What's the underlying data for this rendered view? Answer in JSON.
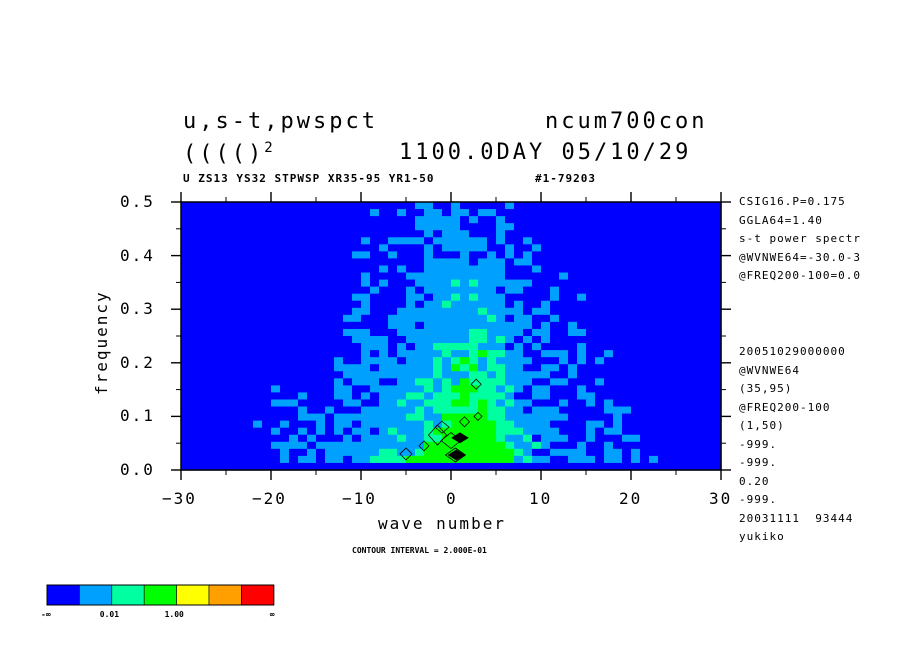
{
  "header": {
    "line1_left": "u,s-t,pwspct",
    "line1_right": "ncum700con",
    "line2_left": "(((()",
    "line2_sup": "2",
    "line2_right": "1100.0DAY 05/10/29",
    "info_left": "U ZS13 YS32 STPWSP XR35-95 YR1-50",
    "info_right": "#1-79203"
  },
  "side_top": [
    "CSIG16.P=0.175",
    "GGLA64=1.40",
    "s-t power spectr",
    "@WVNWE64=-30.0-3",
    "@FREQ200-100=0.0"
  ],
  "side_bottom": [
    "20051029000000",
    "@WVNWE64",
    "(35,95)",
    "@FREQ200-100",
    "(1,50)",
    "-999.",
    "-999.",
    "0.20",
    "-999.",
    "20031111  93444",
    "yukiko"
  ],
  "contour_interval": "CONTOUR INTERVAL = 2.000E-01",
  "colorbar": {
    "colors": [
      "#0000ff",
      "#00a0ff",
      "#00ffa0",
      "#00ff00",
      "#ffff00",
      "#ffa000",
      "#ff0000"
    ],
    "labels": [
      "-∞",
      "0.01",
      "1.00",
      "∞"
    ]
  },
  "chart_data": {
    "type": "heatmap",
    "title": "",
    "xlabel": "wave number",
    "ylabel": "frequency",
    "xlim": [
      -30,
      30
    ],
    "ylim": [
      0,
      0.5
    ],
    "x_ticks": [
      -30,
      -20,
      -10,
      0,
      10,
      20,
      30
    ],
    "x_tick_labels": [
      "−30",
      "−20",
      "−10",
      "0",
      "10",
      "20",
      "30"
    ],
    "y_ticks": [
      0.0,
      0.1,
      0.2,
      0.3,
      0.4,
      0.5
    ],
    "y_tick_labels": [
      "0.0",
      "0.1",
      "0.2",
      "0.3",
      "0.4",
      "0.5"
    ],
    "levels": [
      0.01,
      1.0
    ],
    "level_colors": [
      "#0000ff",
      "#00a0ff",
      "#00ffa0",
      "#00ff00"
    ],
    "grid": false,
    "legend": "bottom-left colorbar"
  }
}
